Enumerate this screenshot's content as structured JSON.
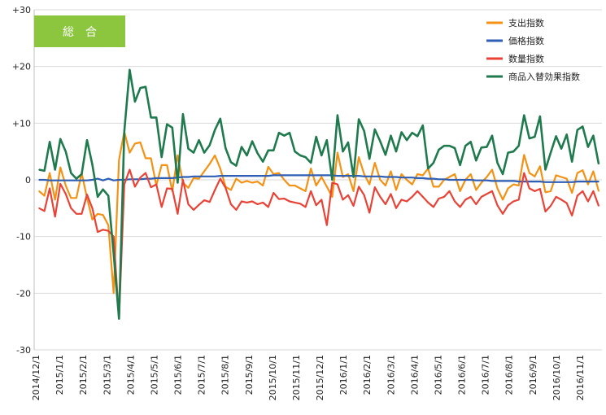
{
  "badge": {
    "label": "総　合",
    "color": "#8cc63f"
  },
  "chart_data": {
    "type": "line",
    "ylim": [
      -30,
      30
    ],
    "y_ticks": [
      "+30",
      "+20",
      "+10",
      "0",
      "-10",
      "-20",
      "-30"
    ],
    "grid": "horizontal",
    "legend_position": "top-right",
    "x_labels": [
      "2014/12/1",
      "2015/1/1",
      "2015/2/1",
      "2015/3/1",
      "2015/4/1",
      "2015/5/1",
      "2015/6/1",
      "2015/7/1",
      "2015/8/1",
      "2015/9/1",
      "2015/10/1",
      "2015/11/1",
      "2015/12/1",
      "2016/1/1",
      "2016/2/1",
      "2016/3/1",
      "2016/4/1",
      "2016/5/1",
      "2016/6/1",
      "2016/7/1",
      "2016/8/1",
      "2016/9/1",
      "2016/10/1",
      "2016/11/1"
    ],
    "series": [
      {
        "name": "支出指数",
        "color": "#f39214",
        "values": [
          -2,
          -2.8,
          1.2,
          -3.5,
          2.2,
          -1,
          -3.2,
          -3.2,
          1.2,
          -3.2,
          -7,
          -6,
          -6.2,
          -8,
          -20,
          3.5,
          8.5,
          4.8,
          6.4,
          6.6,
          3.8,
          3.8,
          -1,
          2.6,
          2.6,
          -2,
          4.3,
          -0.5,
          -1.4,
          0.3,
          0.2,
          1.5,
          2.8,
          4.3,
          2,
          -1.2,
          -1.8,
          0.2,
          -0.5,
          -0.2,
          -0.5,
          -0.3,
          -1,
          2.3,
          1,
          1.2,
          0,
          -1,
          -1,
          -1.5,
          -2,
          2,
          -1,
          0.5,
          -1.2,
          -3,
          4.8,
          0.5,
          1,
          -2,
          4,
          1,
          -0.8,
          3,
          0,
          -1,
          1.5,
          -1.8,
          1,
          0,
          -0.8,
          1,
          0.8,
          2,
          -1.2,
          -1.2,
          0,
          0.5,
          1,
          -2,
          0,
          1,
          -1.8,
          -0.5,
          0.5,
          1.8,
          -1.5,
          -3.5,
          -1.5,
          -0.8,
          -1,
          4.4,
          1.2,
          0.6,
          2.4,
          -2.2,
          -2,
          0.8,
          0.5,
          0.2,
          -2.3,
          1.2,
          1.7,
          -0.8,
          1.5,
          -2
        ]
      },
      {
        "name": "価格指数",
        "color": "#2e5fb4",
        "values": [
          0,
          0,
          -0.1,
          -0.1,
          -0.1,
          -0.1,
          -0.1,
          -0.1,
          -0.1,
          -0.1,
          0,
          0.2,
          -0.1,
          0.2,
          -0.1,
          0,
          0,
          0.1,
          0.1,
          0.1,
          0.2,
          0.2,
          0.3,
          0.3,
          0.3,
          0.3,
          0.4,
          0.5,
          0.5,
          0.6,
          0.6,
          0.6,
          0.6,
          0.6,
          0.7,
          0.7,
          0.7,
          0.7,
          0.7,
          0.7,
          0.7,
          0.7,
          0.7,
          0.7,
          0.8,
          0.8,
          0.8,
          0.8,
          0.8,
          0.8,
          0.8,
          0.8,
          0.8,
          0.8,
          0.8,
          0.8,
          0.7,
          0.7,
          0.7,
          0.7,
          0.7,
          0.6,
          0.6,
          0.6,
          0.6,
          0.5,
          0.5,
          0.5,
          0.4,
          0.4,
          0.4,
          0.3,
          0.3,
          0.2,
          0.2,
          0.1,
          0.1,
          0,
          0,
          0,
          0,
          0,
          -0.1,
          -0.1,
          -0.1,
          -0.2,
          -0.2,
          -0.2,
          -0.2,
          -0.2,
          -0.3,
          -0.3,
          -0.3,
          -0.3,
          -0.3,
          -0.4,
          -0.4,
          -0.4,
          -0.4,
          -0.4,
          -0.4,
          -0.3,
          -0.3,
          -0.3,
          -0.3,
          -0.3
        ]
      },
      {
        "name": "数量指数",
        "color": "#e84336",
        "values": [
          -5,
          -5.5,
          -1.5,
          -6.5,
          -0.7,
          -2.5,
          -5,
          -6,
          -6,
          -2.6,
          -5,
          -9.2,
          -8.8,
          -9,
          -10,
          -24.5,
          -0.8,
          1.8,
          -1.2,
          0.4,
          1.2,
          -1.3,
          -0.8,
          -4.8,
          -1.5,
          -1.6,
          -6,
          0,
          -4.3,
          -5.3,
          -4.4,
          -3.6,
          -3.9,
          -1.8,
          0.2,
          -1.4,
          -4.3,
          -5.3,
          -3.8,
          -4,
          -3.8,
          -4.3,
          -4,
          -4.8,
          -2.3,
          -3.4,
          -3.3,
          -3.8,
          -4,
          -4.2,
          -4.8,
          -2,
          -4.5,
          -3.5,
          -8,
          -0.5,
          -0.8,
          -3.5,
          -2.7,
          -4.6,
          -1.2,
          -2.7,
          -5.8,
          -1.3,
          -3,
          -4.3,
          -2.5,
          -5,
          -3.5,
          -3.8,
          -3,
          -2,
          -3,
          -4,
          -4.8,
          -3.3,
          -3,
          -2,
          -3.8,
          -4.8,
          -3.5,
          -3,
          -4.3,
          -3,
          -2.5,
          -2,
          -4.5,
          -6,
          -4.5,
          -3.8,
          -3.5,
          1.2,
          -1.5,
          -2,
          -1.6,
          -5.6,
          -4.6,
          -3,
          -3.5,
          -4.1,
          -6.3,
          -2.8,
          -2,
          -3.8,
          -2,
          -4.6
        ]
      },
      {
        "name": "商品入替効果指数",
        "color": "#1f7a4d",
        "values": [
          1.8,
          1.6,
          6.7,
          1.8,
          7.2,
          5,
          1.2,
          0.2,
          1,
          7,
          2.7,
          -3,
          -1.7,
          -2.8,
          -13,
          -24.5,
          8.5,
          19.4,
          13.8,
          16.2,
          16.4,
          11,
          11,
          4,
          9.8,
          9.2,
          -0.5,
          11.6,
          5.5,
          4.8,
          7,
          4.8,
          6.1,
          8.8,
          10.8,
          5.6,
          3.1,
          2.5,
          5.8,
          4.3,
          6.8,
          4.7,
          3.2,
          5.2,
          5.2,
          8.3,
          7.8,
          8.3,
          5,
          4.3,
          4,
          3,
          7.6,
          4.3,
          7,
          0,
          11.4,
          5,
          6.6,
          0.5,
          10.7,
          8.6,
          3.7,
          8.9,
          6.8,
          4.4,
          7.8,
          5,
          8.4,
          7,
          8.3,
          7.7,
          9.6,
          2,
          3,
          5.3,
          6,
          6,
          5.6,
          2.6,
          6,
          6.7,
          3.4,
          5.7,
          5.8,
          7.8,
          3,
          1,
          4.8,
          5,
          6,
          11.4,
          7.3,
          7.6,
          11.2,
          1.8,
          4.8,
          7.7,
          5.5,
          8,
          3.2,
          8.8,
          9.4,
          5.8,
          7.8,
          2.8
        ]
      }
    ]
  }
}
